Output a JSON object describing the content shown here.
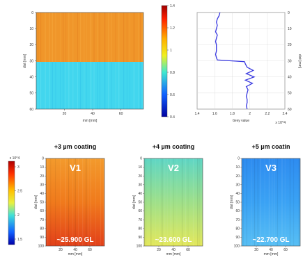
{
  "chart_data": [
    {
      "type": "heatmap",
      "id": "top-map",
      "x_ticks": [
        "20",
        "40",
        "60"
      ],
      "y_ticks": [
        "0",
        "10",
        "20",
        "30",
        "40",
        "50",
        "60"
      ],
      "xlabel": "mm [mm]",
      "ylabel": "dist [mm]",
      "xlim": [
        0,
        76
      ],
      "ylim": [
        0,
        60
      ],
      "regions": [
        {
          "y_from": 0,
          "y_to": 30,
          "level": 1.27,
          "color": "#f0962a"
        },
        {
          "y_from": 30,
          "y_to": 60,
          "level": 0.74,
          "color": "#42d6ee"
        }
      ]
    },
    {
      "type": "colorbar",
      "id": "top-colorbar",
      "ticks": [
        "1.4",
        "1.2",
        "1",
        "0.8",
        "0.6",
        "0.4"
      ],
      "range": [
        0.4,
        1.4
      ]
    },
    {
      "type": "line",
      "id": "profile",
      "xlabel": "Grey value",
      "x_multiplier": "x 10^4",
      "x_ticks": [
        "1.4",
        "1.6",
        "1.8",
        "2",
        "2.2",
        "2.4"
      ],
      "y_ticks": [
        "0",
        "10",
        "20",
        "30",
        "40",
        "50",
        "60"
      ],
      "ylabel": "dist [mm]",
      "xlim": [
        1.4,
        2.4
      ],
      "ylim": [
        0,
        60
      ],
      "x": [
        1.66,
        1.65,
        1.63,
        1.62,
        1.63,
        1.62,
        1.61,
        1.63,
        1.62,
        1.61,
        1.62,
        1.62,
        1.62,
        1.61,
        1.62,
        1.63,
        1.94,
        1.95,
        1.97,
        2.04,
        1.96,
        2.05,
        1.95,
        2.03,
        1.96,
        1.98,
        1.97,
        1.96,
        1.97,
        1.97,
        1.96,
        1.97
      ],
      "y": [
        0,
        2,
        4,
        6,
        8,
        10,
        12,
        14,
        16,
        18,
        20,
        22,
        24,
        26,
        28,
        29.5,
        30.5,
        32,
        34,
        36,
        38,
        40,
        42,
        44,
        46,
        48,
        50,
        52,
        54,
        56,
        58,
        60
      ]
    },
    {
      "type": "colorbar",
      "id": "bottom-colorbar",
      "multiplier": "x 10^4",
      "ticks": [
        "3",
        "2.5",
        "2",
        "1.5"
      ]
    },
    {
      "type": "heatmap",
      "id": "panel-v1",
      "title": "+3 µm coating",
      "label": "V1",
      "value_label": "~25.900 GL",
      "x_ticks": [
        "20",
        "40",
        "60"
      ],
      "y_ticks": [
        "0",
        "10",
        "20",
        "30",
        "40",
        "50",
        "60",
        "70",
        "80",
        "90",
        "100"
      ],
      "xlabel": "mm [mm]",
      "ylabel": "dist [mm]",
      "colors": [
        "#f39a2c",
        "#f07a1c",
        "#e2401a"
      ]
    },
    {
      "type": "heatmap",
      "id": "panel-v2",
      "title": "+4 µm coating",
      "label": "V2",
      "value_label": "~23.600 GL",
      "x_ticks": [
        "20",
        "40",
        "60"
      ],
      "y_ticks": [
        "0",
        "10",
        "20",
        "30",
        "40",
        "50",
        "60",
        "70",
        "80",
        "90",
        "100"
      ],
      "xlabel": "mm [mm]",
      "ylabel": "dist [mm]",
      "colors": [
        "#5fd6c4",
        "#9fe08a",
        "#e4e85c"
      ]
    },
    {
      "type": "heatmap",
      "id": "panel-v3",
      "title": "+5 µm coatin",
      "label": "V3",
      "value_label": "~22.700 GL",
      "x_ticks": [
        "20",
        "40",
        "60"
      ],
      "y_ticks": [
        "0",
        "10",
        "20",
        "30",
        "40",
        "50",
        "60",
        "70",
        "80",
        "90",
        "100"
      ],
      "xlabel": "mm [mm]",
      "ylabel": "dist [mm]",
      "colors": [
        "#2e8cf0",
        "#3aa2f4",
        "#58bff4"
      ]
    }
  ]
}
